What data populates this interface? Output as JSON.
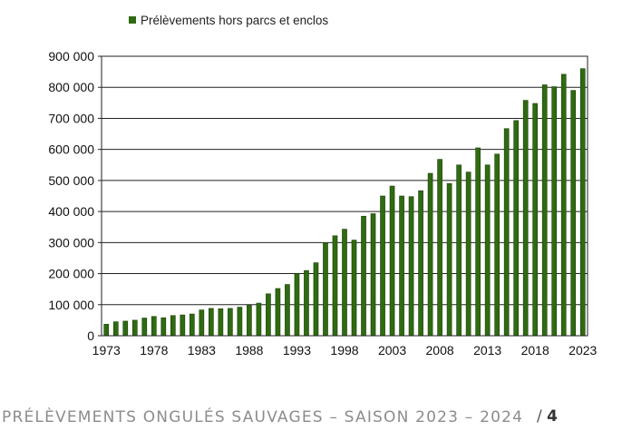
{
  "chart_data": {
    "type": "bar",
    "title": "",
    "xlabel": "",
    "ylabel": "",
    "ylim": [
      0,
      900000
    ],
    "y_ticks": [
      "0",
      "100 000",
      "200 000",
      "300 000",
      "400 000",
      "500 000",
      "600 000",
      "700 000",
      "800 000",
      "900 000"
    ],
    "x_tick_labels": [
      "1973",
      "1978",
      "1983",
      "1988",
      "1993",
      "1998",
      "2003",
      "2008",
      "2013",
      "2018",
      "2023"
    ],
    "grid": true,
    "legend_position": "top",
    "color": "#2f6b10",
    "series": [
      {
        "name": "Prélèvements hors parcs et enclos",
        "categories": [
          1973,
          1974,
          1975,
          1976,
          1977,
          1978,
          1979,
          1980,
          1981,
          1982,
          1983,
          1984,
          1985,
          1986,
          1987,
          1988,
          1989,
          1990,
          1991,
          1992,
          1993,
          1994,
          1995,
          1996,
          1997,
          1998,
          1999,
          2000,
          2001,
          2002,
          2003,
          2004,
          2005,
          2006,
          2007,
          2008,
          2009,
          2010,
          2011,
          2012,
          2013,
          2014,
          2015,
          2016,
          2017,
          2018,
          2019,
          2020,
          2021,
          2022,
          2023
        ],
        "values": [
          37000,
          45000,
          47000,
          50000,
          57000,
          62000,
          58000,
          65000,
          67000,
          70000,
          83000,
          88000,
          87000,
          88000,
          92000,
          98000,
          105000,
          135000,
          152000,
          165000,
          200000,
          210000,
          235000,
          300000,
          322000,
          343000,
          308000,
          385000,
          393000,
          450000,
          482000,
          450000,
          448000,
          467000,
          523000,
          568000,
          490000,
          550000,
          527000,
          605000,
          550000,
          585000,
          667000,
          693000,
          758000,
          748000,
          808000,
          802000,
          842000,
          790000,
          860000
        ]
      }
    ]
  },
  "footer": {
    "title": "PRÉLÈVEMENTS ONGULÉS SAUVAGES – SAISON 2023 – 2024",
    "page_sep": "/",
    "page_number": "4"
  }
}
